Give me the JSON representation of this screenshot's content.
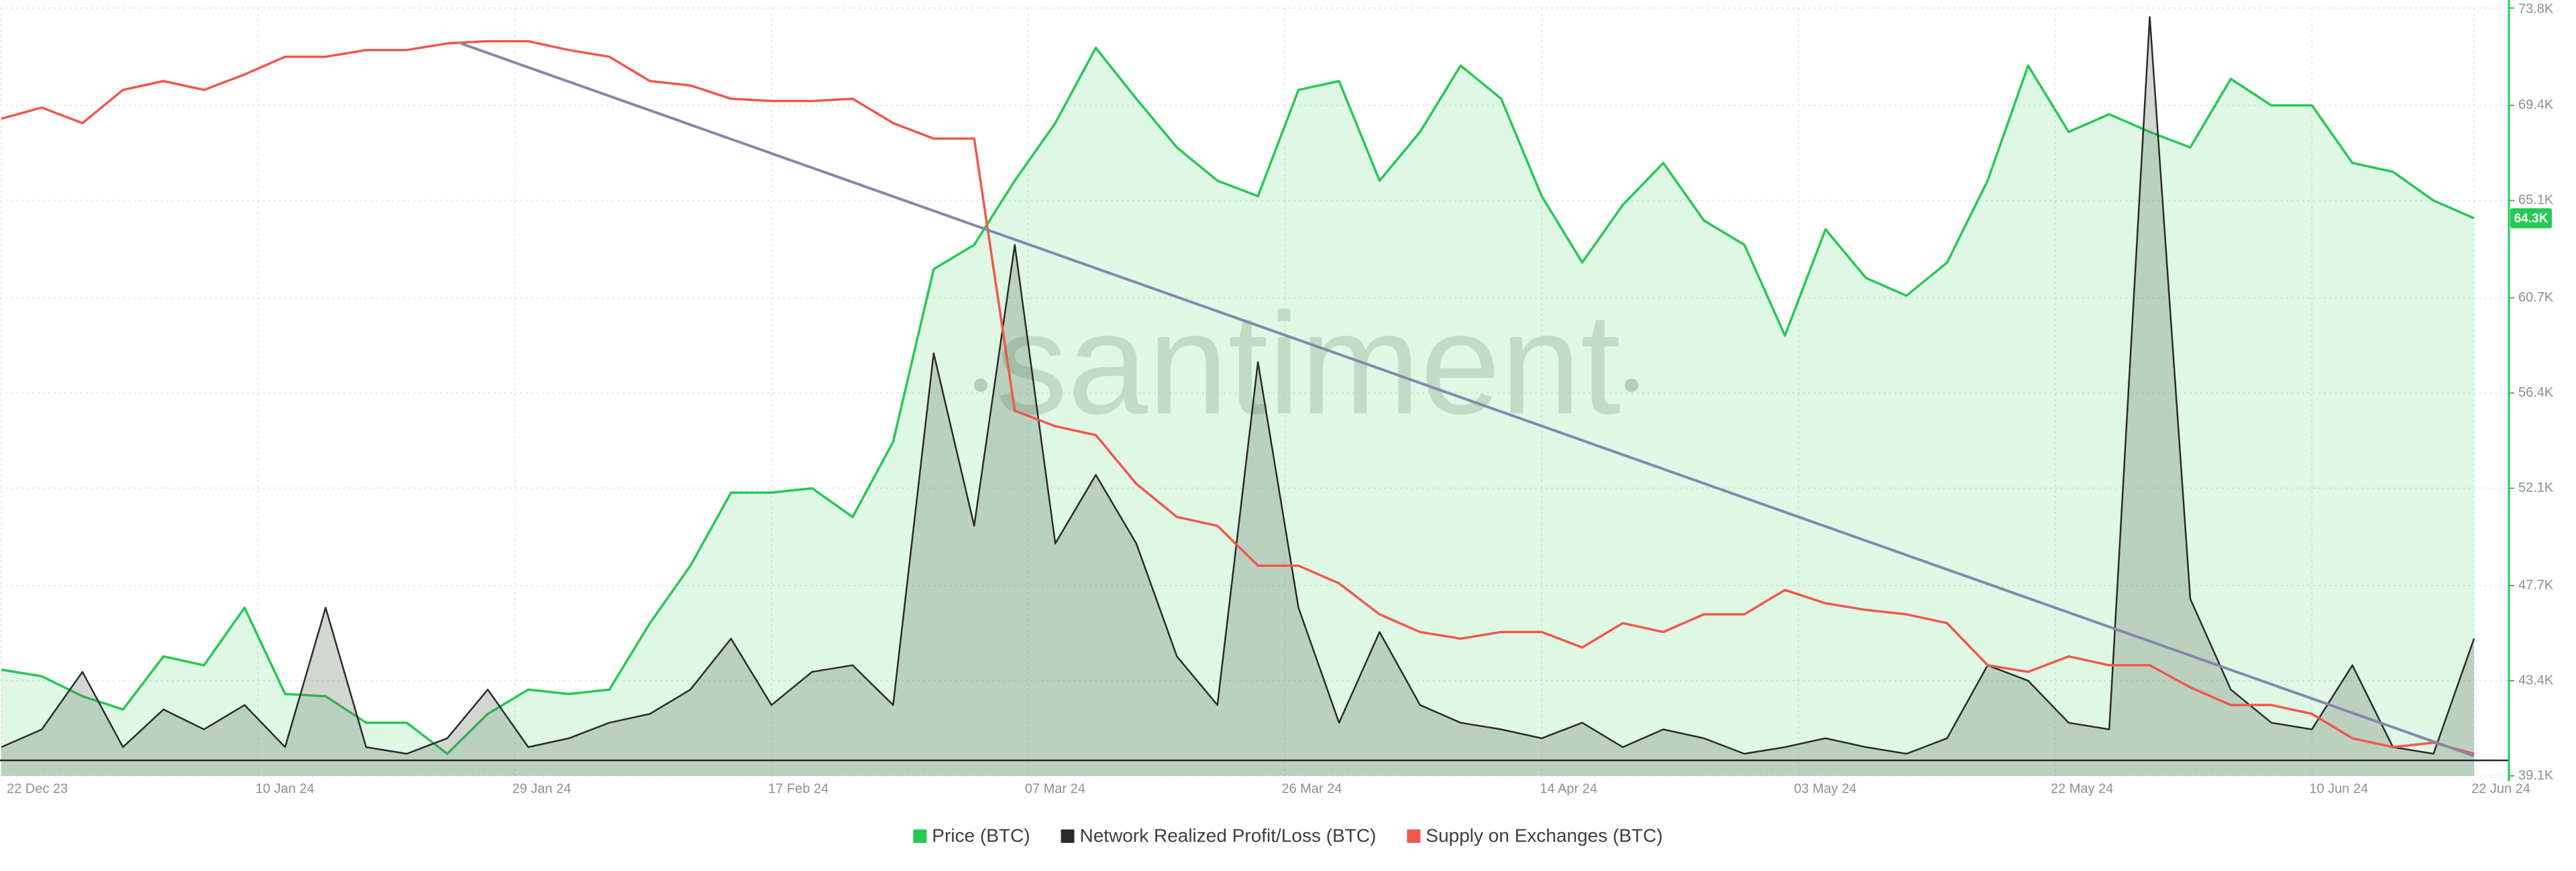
{
  "chart_data": {
    "type": "line",
    "watermark": "santiment",
    "x": [
      "2023-12-22",
      "2023-12-25",
      "2023-12-28",
      "2023-12-31",
      "2024-01-03",
      "2024-01-06",
      "2024-01-09",
      "2024-01-12",
      "2024-01-15",
      "2024-01-18",
      "2024-01-21",
      "2024-01-24",
      "2024-01-27",
      "2024-01-30",
      "2024-02-02",
      "2024-02-05",
      "2024-02-08",
      "2024-02-11",
      "2024-02-14",
      "2024-02-17",
      "2024-02-20",
      "2024-02-23",
      "2024-02-26",
      "2024-02-29",
      "2024-03-03",
      "2024-03-06",
      "2024-03-09",
      "2024-03-12",
      "2024-03-15",
      "2024-03-18",
      "2024-03-21",
      "2024-03-24",
      "2024-03-27",
      "2024-03-30",
      "2024-04-02",
      "2024-04-05",
      "2024-04-08",
      "2024-04-11",
      "2024-04-14",
      "2024-04-17",
      "2024-04-20",
      "2024-04-23",
      "2024-04-26",
      "2024-04-29",
      "2024-05-02",
      "2024-05-05",
      "2024-05-08",
      "2024-05-11",
      "2024-05-14",
      "2024-05-17",
      "2024-05-20",
      "2024-05-23",
      "2024-05-26",
      "2024-05-29",
      "2024-06-01",
      "2024-06-04",
      "2024-06-07",
      "2024-06-10",
      "2024-06-13",
      "2024-06-16",
      "2024-06-19",
      "2024-06-22"
    ],
    "series": [
      {
        "name": "Price (BTC)",
        "color": "#26c953",
        "fill": "rgba(38,201,83,0.15)",
        "values": [
          43900,
          43600,
          42700,
          42100,
          44500,
          44100,
          46700,
          42800,
          42700,
          41500,
          41500,
          40100,
          41900,
          43000,
          42800,
          43000,
          46000,
          48600,
          51900,
          51900,
          52100,
          50800,
          54200,
          62000,
          63100,
          66000,
          68600,
          72000,
          69700,
          67500,
          66000,
          65300,
          70100,
          70500,
          66000,
          68200,
          71200,
          69700,
          65300,
          62300,
          64900,
          66800,
          64200,
          63100,
          59000,
          63800,
          61600,
          60800,
          62300,
          66000,
          71200,
          68200,
          69000,
          68200,
          67500,
          70600,
          69400,
          69400,
          66800,
          66400,
          65100,
          64300
        ]
      },
      {
        "name": "Network Realized Profit/Loss (BTC)",
        "color": "#2b2b2b",
        "fill": "rgba(95,110,95,0.28)",
        "baseline": 39800,
        "values": [
          40400,
          41200,
          43800,
          40400,
          42100,
          41200,
          42300,
          40400,
          46700,
          40400,
          40100,
          40800,
          43000,
          40400,
          40800,
          41500,
          41900,
          43000,
          45300,
          42300,
          43800,
          44100,
          42300,
          58200,
          50400,
          63100,
          49600,
          52700,
          49600,
          44500,
          42300,
          57800,
          46700,
          41500,
          45600,
          42300,
          41500,
          41200,
          40800,
          41500,
          40400,
          41200,
          40800,
          40100,
          40400,
          40800,
          40400,
          40100,
          40800,
          44100,
          43400,
          41500,
          41200,
          73400,
          47100,
          43000,
          41500,
          41200,
          44100,
          40400,
          40100,
          45300
        ]
      },
      {
        "name": "Supply on Exchanges (BTC)",
        "color": "#f0574b",
        "values": [
          68800,
          69300,
          68600,
          70100,
          70500,
          70100,
          70800,
          71600,
          71600,
          71900,
          71900,
          72200,
          72300,
          72300,
          71900,
          71600,
          70500,
          70300,
          69700,
          69600,
          69600,
          69700,
          68600,
          67900,
          67900,
          55600,
          54900,
          54500,
          52300,
          50800,
          50400,
          48600,
          48600,
          47800,
          46400,
          45600,
          45300,
          45600,
          45600,
          44900,
          46000,
          45600,
          46400,
          46400,
          47500,
          46900,
          46600,
          46400,
          46000,
          44100,
          43800,
          44500,
          44100,
          44100,
          43100,
          42300,
          42300,
          41900,
          40800,
          40400,
          40600,
          40100
        ]
      }
    ],
    "trendline": {
      "x": [
        "2024-01-25",
        "2024-06-22"
      ],
      "values": [
        72200,
        40000
      ],
      "color": "#8388aa"
    },
    "last_value_label": {
      "value": 64300,
      "label": "64.3K"
    },
    "xlim": [
      "2023-12-22",
      "2024-06-22"
    ],
    "xticks": [
      {
        "value": "2023-12-22",
        "label": "22 Dec 23"
      },
      {
        "value": "2024-01-10",
        "label": "10 Jan 24"
      },
      {
        "value": "2024-01-29",
        "label": "29 Jan 24"
      },
      {
        "value": "2024-02-17",
        "label": "17 Feb 24"
      },
      {
        "value": "2024-03-07",
        "label": "07 Mar 24"
      },
      {
        "value": "2024-03-26",
        "label": "26 Mar 24"
      },
      {
        "value": "2024-04-14",
        "label": "14 Apr 24"
      },
      {
        "value": "2024-05-03",
        "label": "03 May 24"
      },
      {
        "value": "2024-05-22",
        "label": "22 May 24"
      },
      {
        "value": "2024-06-10",
        "label": "10 Jun 24"
      },
      {
        "value": "2024-06-22",
        "label": "22 Jun 24"
      }
    ],
    "ylim": [
      39100,
      73800
    ],
    "yticks": [
      {
        "value": 39100,
        "label": "39.1K"
      },
      {
        "value": 43400,
        "label": "43.4K"
      },
      {
        "value": 47700,
        "label": "47.7K"
      },
      {
        "value": 52100,
        "label": "52.1K"
      },
      {
        "value": 56400,
        "label": "56.4K"
      },
      {
        "value": 60700,
        "label": "60.7K"
      },
      {
        "value": 65100,
        "label": "65.1K"
      },
      {
        "value": 69400,
        "label": "69.4K"
      },
      {
        "value": 73800,
        "label": "73.8K"
      }
    ],
    "axis_color": "#26c953",
    "grid": true,
    "legend": "bottom"
  }
}
